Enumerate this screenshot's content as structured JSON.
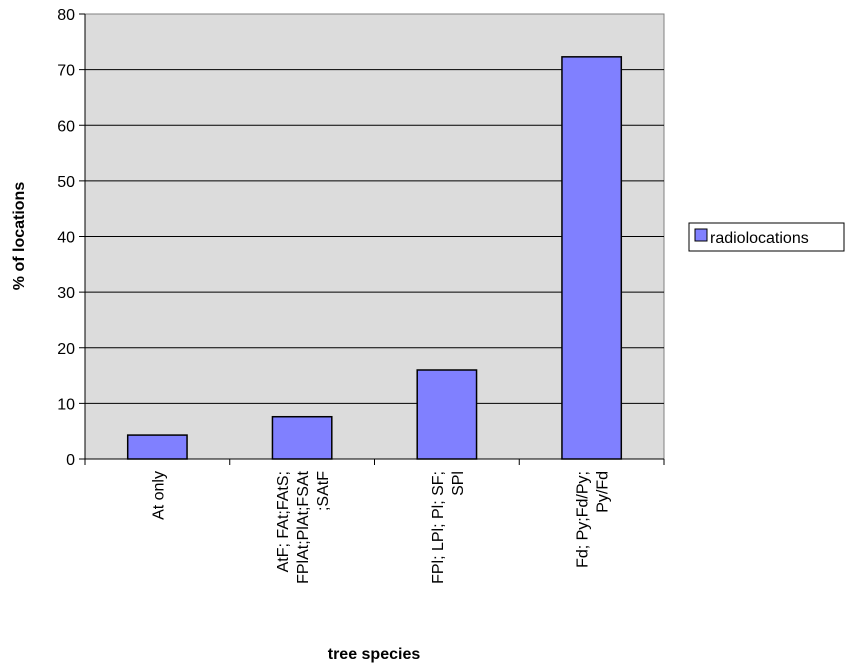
{
  "chart_data": {
    "type": "bar",
    "categories": [
      [
        "At only"
      ],
      [
        "AtF; FAt;FAtS;",
        "FPlAt;PlAt;FSAt",
        ";SAtF"
      ],
      [
        "FPl; LPl; Pl; SF;",
        "SPl"
      ],
      [
        "Fd; Py;Fd/Py;",
        "Py/Fd"
      ]
    ],
    "series": [
      {
        "name": "radiolocations",
        "values": [
          4.3,
          7.6,
          16.0,
          72.3
        ]
      }
    ],
    "title": "",
    "xlabel": "tree species",
    "ylabel": "% of locations",
    "ylim": [
      0,
      80
    ],
    "yticks": [
      0,
      10,
      20,
      30,
      40,
      50,
      60,
      70,
      80
    ],
    "grid": true,
    "legend": "right",
    "colors": {
      "bar_fill": "#8080FF",
      "plot_background": "#DCDCDC",
      "gridline": "#000000",
      "bar_stroke": "#000000"
    }
  }
}
